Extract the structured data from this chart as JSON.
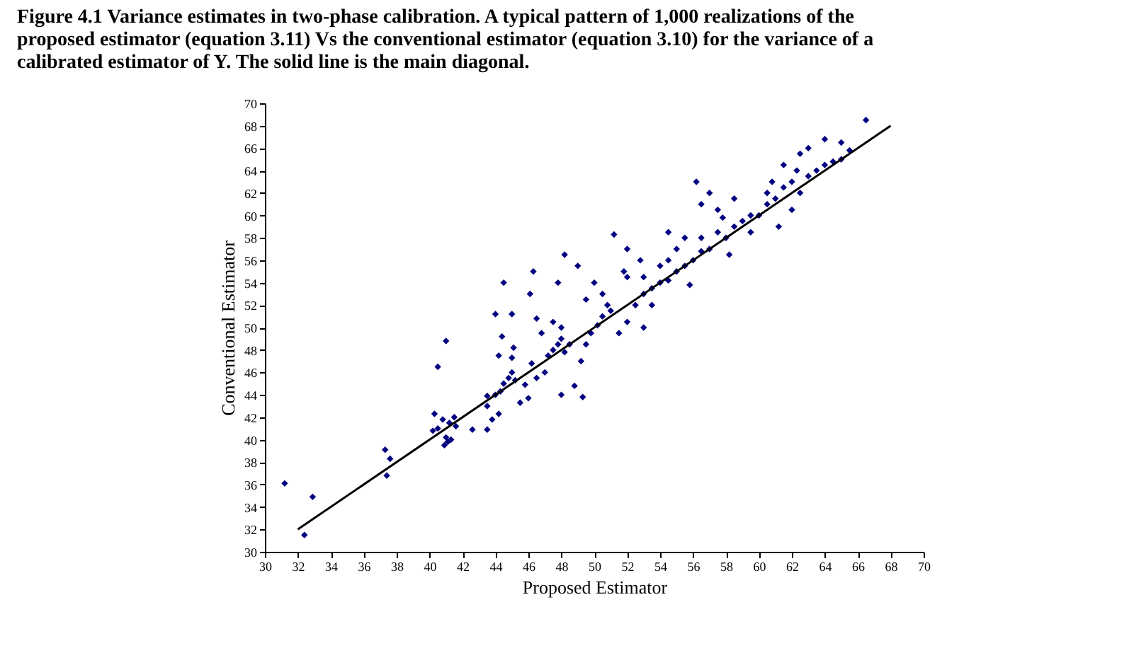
{
  "chart_data": {
    "type": "scatter",
    "title": "Figure 4.1   Variance estimates in two-phase calibration. A typical pattern of 1,000 realizations of the proposed estimator (equation 3.11) Vs the conventional estimator (equation 3.10) for the variance of a calibrated estimator of Y. The solid line is the main diagonal.",
    "xlabel": "Proposed Estimator",
    "ylabel": "Conventional Estimator",
    "xlim": [
      30,
      70
    ],
    "ylim": [
      30,
      70
    ],
    "xticks": [
      30,
      32,
      34,
      36,
      38,
      40,
      42,
      44,
      46,
      48,
      50,
      52,
      54,
      56,
      58,
      60,
      62,
      64,
      66,
      68,
      70
    ],
    "yticks": [
      30,
      32,
      34,
      36,
      38,
      40,
      42,
      44,
      46,
      48,
      50,
      52,
      54,
      56,
      58,
      60,
      62,
      64,
      66,
      68,
      70
    ],
    "grid": false,
    "series": [
      {
        "color": "#000080",
        "marker": "diamond",
        "x": [
          31.2,
          32.9,
          32.4,
          37.3,
          37.6,
          37.4,
          40.3,
          40.5,
          41.0,
          40.2,
          41.1,
          40.5,
          40.8,
          41.2,
          41.5,
          41.0,
          40.9,
          41.3,
          41.6,
          42.6,
          43.5,
          43.8,
          43.5,
          44.0,
          44.3,
          44.5,
          44.8,
          45.0,
          45.2,
          45.0,
          44.2,
          45.1,
          44.4,
          44.0,
          45.0,
          44.5,
          45.5,
          45.8,
          46.0,
          46.2,
          44.2,
          43.5,
          46.5,
          47.0,
          47.2,
          47.5,
          47.8,
          48.0,
          48.2,
          48.0,
          47.5,
          46.8,
          48.5,
          48.8,
          49.3,
          48.0,
          46.1,
          46.3,
          47.8,
          48.2,
          46.5,
          49.5,
          49.8,
          50.2,
          50.5,
          50.8,
          50.5,
          51.0,
          49.5,
          49.0,
          50.0,
          49.2,
          51.5,
          51.2,
          52.0,
          52.5,
          53.0,
          53.5,
          54.0,
          54.5,
          55.0,
          55.5,
          53.0,
          54.0,
          54.5,
          55.0,
          53.5,
          52.8,
          55.5,
          52.0,
          56.0,
          56.5,
          55.8,
          53.0,
          52.0,
          51.8,
          54.5,
          56.5,
          57.0,
          57.5,
          58.0,
          58.5,
          59.0,
          59.5,
          57.5,
          56.5,
          57.0,
          58.5,
          59.5,
          60.0,
          60.5,
          56.2,
          57.8,
          58.2,
          60.5,
          61.0,
          61.5,
          62.0,
          62.5,
          63.0,
          63.5,
          64.0,
          64.5,
          65.0,
          65.5,
          61.5,
          62.5,
          63.0,
          64.0,
          61.2,
          65.0,
          66.5,
          62.3,
          60.8,
          62.0
        ],
        "values": [
          36.1,
          34.9,
          31.5,
          39.1,
          38.3,
          36.8,
          42.3,
          46.5,
          48.8,
          40.8,
          39.8,
          41.0,
          41.8,
          41.5,
          42.0,
          40.2,
          39.5,
          40.0,
          41.2,
          40.9,
          40.9,
          41.8,
          43.9,
          44.0,
          44.3,
          45.0,
          45.5,
          46.0,
          45.3,
          47.3,
          47.5,
          48.2,
          49.2,
          51.2,
          51.2,
          54.0,
          43.3,
          44.9,
          43.7,
          46.8,
          42.3,
          43.0,
          45.5,
          46.0,
          47.5,
          48.0,
          48.5,
          49.0,
          47.8,
          50.0,
          50.5,
          49.5,
          48.5,
          44.8,
          43.8,
          44.0,
          53.0,
          55.0,
          54.0,
          56.5,
          50.8,
          48.5,
          49.5,
          50.2,
          51.0,
          52.0,
          53.0,
          51.5,
          52.5,
          55.5,
          54.0,
          47.0,
          49.5,
          58.3,
          50.5,
          52.0,
          53.0,
          53.5,
          54.0,
          54.2,
          55.0,
          55.5,
          54.5,
          55.5,
          56.0,
          57.0,
          52.0,
          56.0,
          58.0,
          57.0,
          56.0,
          56.8,
          53.8,
          50.0,
          54.5,
          55.0,
          58.5,
          58.0,
          57.0,
          58.5,
          58.0,
          59.0,
          59.5,
          60.0,
          60.5,
          61.0,
          62.0,
          61.5,
          58.5,
          60.0,
          61.0,
          63.0,
          59.8,
          56.5,
          62.0,
          61.5,
          62.5,
          63.0,
          62.0,
          63.5,
          64.0,
          64.5,
          64.8,
          65.0,
          65.8,
          64.5,
          65.5,
          66.0,
          66.8,
          59.0,
          66.5,
          68.5,
          64.0,
          63.0,
          60.5
        ]
      },
      {
        "type": "line",
        "color": "#000000",
        "line_style": "solid",
        "x": [
          32,
          68
        ],
        "values": [
          32,
          68
        ]
      }
    ]
  }
}
